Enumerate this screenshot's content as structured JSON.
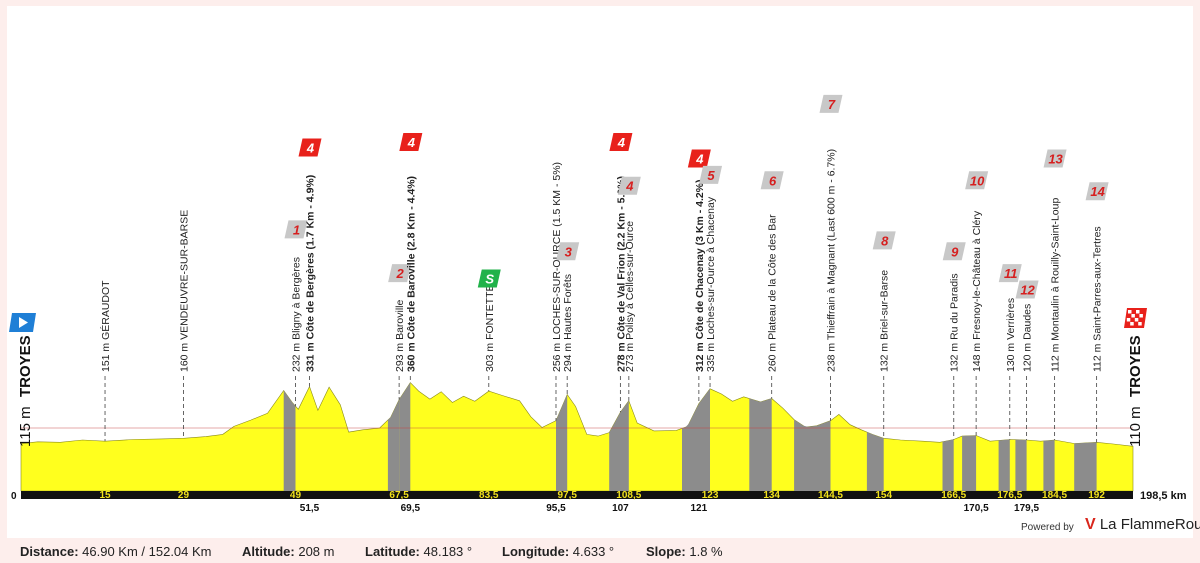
{
  "chart_data": {
    "type": "area",
    "unit": "km",
    "total_label": "198,5 km",
    "start_label": "0",
    "start": {
      "alt_label": "115 m",
      "name": "TROYES"
    },
    "finish": {
      "alt_label": "110 m",
      "name": "TROYES"
    },
    "profile": [
      {
        "km": 0,
        "alt": 115
      },
      {
        "km": 3,
        "alt": 118
      },
      {
        "km": 7,
        "alt": 117
      },
      {
        "km": 11,
        "alt": 121
      },
      {
        "km": 15,
        "alt": 119
      },
      {
        "km": 20,
        "alt": 122
      },
      {
        "km": 25,
        "alt": 123
      },
      {
        "km": 29,
        "alt": 124
      },
      {
        "km": 33,
        "alt": 127
      },
      {
        "km": 36,
        "alt": 131
      },
      {
        "km": 38,
        "alt": 145
      },
      {
        "km": 41,
        "alt": 156
      },
      {
        "km": 44,
        "alt": 168
      },
      {
        "km": 46.9,
        "alt": 208
      },
      {
        "km": 48.5,
        "alt": 186
      },
      {
        "km": 49.5,
        "alt": 175
      },
      {
        "km": 51.5,
        "alt": 215
      },
      {
        "km": 53,
        "alt": 173
      },
      {
        "km": 55,
        "alt": 214
      },
      {
        "km": 57,
        "alt": 183
      },
      {
        "km": 58.5,
        "alt": 135
      },
      {
        "km": 61,
        "alt": 139
      },
      {
        "km": 64,
        "alt": 142
      },
      {
        "km": 66,
        "alt": 161
      },
      {
        "km": 67.5,
        "alt": 192
      },
      {
        "km": 69.5,
        "alt": 222
      },
      {
        "km": 71,
        "alt": 207
      },
      {
        "km": 73,
        "alt": 193
      },
      {
        "km": 75,
        "alt": 206
      },
      {
        "km": 77,
        "alt": 187
      },
      {
        "km": 79,
        "alt": 198
      },
      {
        "km": 81,
        "alt": 189
      },
      {
        "km": 83.5,
        "alt": 207
      },
      {
        "km": 86,
        "alt": 199
      },
      {
        "km": 89,
        "alt": 190
      },
      {
        "km": 91,
        "alt": 162
      },
      {
        "km": 93,
        "alt": 143
      },
      {
        "km": 95.5,
        "alt": 155
      },
      {
        "km": 97.5,
        "alt": 201
      },
      {
        "km": 99,
        "alt": 180
      },
      {
        "km": 101,
        "alt": 131
      },
      {
        "km": 103,
        "alt": 128
      },
      {
        "km": 105,
        "alt": 134
      },
      {
        "km": 107,
        "alt": 170
      },
      {
        "km": 108.5,
        "alt": 190
      },
      {
        "km": 110,
        "alt": 151
      },
      {
        "km": 113,
        "alt": 137
      },
      {
        "km": 117,
        "alt": 138
      },
      {
        "km": 119,
        "alt": 145
      },
      {
        "km": 121,
        "alt": 185
      },
      {
        "km": 123,
        "alt": 211
      },
      {
        "km": 125,
        "alt": 202
      },
      {
        "km": 127,
        "alt": 189
      },
      {
        "km": 129,
        "alt": 197
      },
      {
        "km": 132,
        "alt": 188
      },
      {
        "km": 134,
        "alt": 194
      },
      {
        "km": 136,
        "alt": 177
      },
      {
        "km": 138,
        "alt": 157
      },
      {
        "km": 140,
        "alt": 144
      },
      {
        "km": 142,
        "alt": 146
      },
      {
        "km": 144.5,
        "alt": 155
      },
      {
        "km": 146,
        "alt": 166
      },
      {
        "km": 148,
        "alt": 148
      },
      {
        "km": 150,
        "alt": 139
      },
      {
        "km": 152,
        "alt": 131
      },
      {
        "km": 154,
        "alt": 124
      },
      {
        "km": 157,
        "alt": 121
      },
      {
        "km": 161,
        "alt": 119
      },
      {
        "km": 164,
        "alt": 117
      },
      {
        "km": 166.5,
        "alt": 122
      },
      {
        "km": 168,
        "alt": 128
      },
      {
        "km": 170.5,
        "alt": 129
      },
      {
        "km": 173,
        "alt": 119
      },
      {
        "km": 176.5,
        "alt": 122
      },
      {
        "km": 179.5,
        "alt": 121
      },
      {
        "km": 182,
        "alt": 119
      },
      {
        "km": 184.5,
        "alt": 121
      },
      {
        "km": 188,
        "alt": 115
      },
      {
        "km": 192,
        "alt": 117
      },
      {
        "km": 195,
        "alt": 114
      },
      {
        "km": 198.5,
        "alt": 110
      }
    ],
    "climbs": [
      {
        "start": 46.9,
        "end": 49
      },
      {
        "start": 65.5,
        "end": 67.5
      },
      {
        "start": 67.5,
        "end": 69.5
      },
      {
        "start": 95.5,
        "end": 97.5
      },
      {
        "start": 105,
        "end": 108.5
      },
      {
        "start": 118,
        "end": 123
      },
      {
        "start": 130,
        "end": 134
      },
      {
        "start": 138,
        "end": 144.5
      },
      {
        "start": 151,
        "end": 154
      },
      {
        "start": 164.5,
        "end": 166.5
      },
      {
        "start": 168,
        "end": 170.5
      },
      {
        "start": 174.5,
        "end": 176.5
      },
      {
        "start": 177.5,
        "end": 179.5
      },
      {
        "start": 182.5,
        "end": 184.5
      },
      {
        "start": 188,
        "end": 192
      }
    ],
    "top_ticks": [
      "15",
      "29",
      "49",
      "67,5",
      "83,5",
      "97,5",
      "108,5",
      "123",
      "134",
      "144,5",
      "154",
      "166,5",
      "176,5",
      "184,5",
      "192"
    ],
    "top_ticks_km": [
      15,
      29,
      49,
      67.5,
      83.5,
      97.5,
      108.5,
      123,
      134,
      144.5,
      154,
      166.5,
      176.5,
      184.5,
      192
    ],
    "bottom_ticks": [
      "51,5",
      "69,5",
      "95,5",
      "107",
      "121",
      "170,5",
      "179,5"
    ],
    "bottom_ticks_km": [
      51.5,
      69.5,
      95.5,
      107,
      121,
      170.5,
      179.5
    ],
    "waypoints": [
      {
        "km": 15,
        "text": "151 m GÉRAUDOT",
        "badge": ""
      },
      {
        "km": 29,
        "text": "160 m VENDEUVRE-SUR-BARSE",
        "badge": ""
      },
      {
        "km": 49,
        "text": "232 m Bligny à Bergères",
        "badge": "1"
      },
      {
        "km": 51.5,
        "text": "331 m Côte de Bergères (1.7 Km - 4.9%)",
        "badge": "4",
        "kom": true
      },
      {
        "km": 67.5,
        "text": "293 m Baroville",
        "badge": "2"
      },
      {
        "km": 69.5,
        "text": "360 m Côte de Baroville (2.8 Km - 4.4%)",
        "badge": "4",
        "kom": true
      },
      {
        "km": 83.5,
        "text": "303 m FONTETTE",
        "badge": "S",
        "sprint": true
      },
      {
        "km": 95.5,
        "text": "256 m LOCHES-SUR-OURCE (1.5 KM - 5%)",
        "badge": ""
      },
      {
        "km": 97.5,
        "text": "294 m Hautes Forêts",
        "badge": "3"
      },
      {
        "km": 107,
        "text": "278 m Côte de Val Frion (2.2 Km - 5.0%)",
        "badge": "4",
        "kom": true
      },
      {
        "km": 108.5,
        "text": "273 m Polisy à Celles-sur-Ource",
        "badge": "4"
      },
      {
        "km": 121,
        "text": "312 m Côte de Chacenay (3 Km - 4.2%)",
        "badge": "4",
        "kom": true
      },
      {
        "km": 123,
        "text": "335 m Loches-sur-Ource à Chacenay",
        "badge": "5"
      },
      {
        "km": 134,
        "text": "260 m Plateau de la Côte des Bar",
        "badge": "6"
      },
      {
        "km": 144.5,
        "text": "238 m Thieffrain à Magnant (Last 600 m - 6.7%)",
        "badge": "7"
      },
      {
        "km": 154,
        "text": "132 m Briel-sur-Barse",
        "badge": "8"
      },
      {
        "km": 166.5,
        "text": "132 m Ru du Paradis",
        "badge": "9"
      },
      {
        "km": 170.5,
        "text": "148 m Fresnoy-le-Château à Cléry",
        "badge": "10"
      },
      {
        "km": 176.5,
        "text": "130 m Verrières",
        "badge": "11"
      },
      {
        "km": 179.5,
        "text": "120 m Daudes",
        "badge": "12"
      },
      {
        "km": 184.5,
        "text": "112 m Montaulin à Rouilly-Saint-Loup",
        "badge": "13"
      },
      {
        "km": 192,
        "text": "112 m Saint-Parres-aux-Tertres",
        "badge": "14"
      }
    ],
    "colors": {
      "fill": "#ffff1e",
      "climb": "#8c8c8c",
      "kom": "#e8211b",
      "sector": "#c8c8c8",
      "sector_text": "#d61f1f",
      "sprint": "#21b24a",
      "start_flag": "#1f7fd6",
      "axis_bar": "#111111",
      "tick_text": "#f2e21c",
      "baseline": "#c94040"
    }
  },
  "stats": {
    "distance_label": "Distance:",
    "distance_value": "46.90 Km / 152.04 Km",
    "altitude_label": "Altitude:",
    "altitude_value": "208 m",
    "latitude_label": "Latitude:",
    "latitude_value": "48.183 °",
    "longitude_label": "Longitude:",
    "longitude_value": "4.633 °",
    "slope_label": "Slope:",
    "slope_value": "1.8 %"
  },
  "brand": {
    "powered_by": "Powered by",
    "name": "La FlammeRouge",
    "mark": "V"
  }
}
